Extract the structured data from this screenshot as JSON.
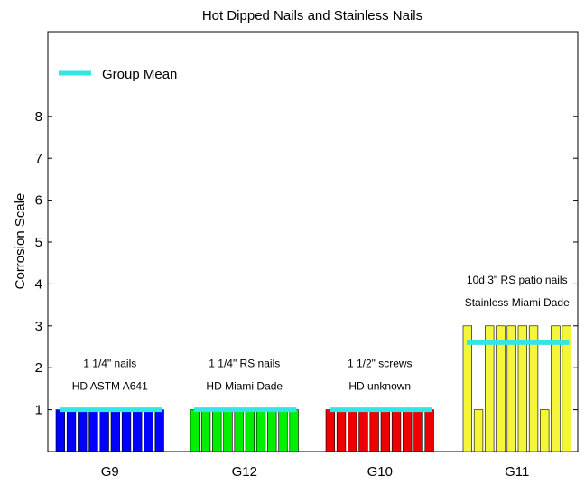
{
  "chart_data": {
    "type": "bar",
    "title": "Hot Dipped Nails and Stainless Nails",
    "xlabel": "",
    "ylabel": "Corrosion Scale",
    "ylim": [
      0,
      10
    ],
    "yticks": [
      "1",
      "2",
      "3",
      "4",
      "5",
      "6",
      "7",
      "8"
    ],
    "legend": {
      "label": "Group Mean",
      "position": "top-left",
      "color": "#33e6e6"
    },
    "groups": [
      {
        "name": "G9",
        "color": "#0000ff",
        "values": [
          1,
          1,
          1,
          1,
          1,
          1,
          1,
          1,
          1,
          1
        ],
        "mean": 1.0,
        "note_lines": [
          "1 1/4\" nails",
          "HD ASTM A641"
        ]
      },
      {
        "name": "G12",
        "color": "#00ee00",
        "values": [
          1,
          1,
          1,
          1,
          1,
          1,
          1,
          1,
          1,
          1
        ],
        "mean": 1.0,
        "note_lines": [
          "1 1/4\" RS nails",
          "HD Miami Dade"
        ]
      },
      {
        "name": "G10",
        "color": "#ee0000",
        "values": [
          1,
          1,
          1,
          1,
          1,
          1,
          1,
          1,
          1,
          1
        ],
        "mean": 1.0,
        "note_lines": [
          "1 1/2\" screws",
          "HD unknown"
        ]
      },
      {
        "name": "G11",
        "color": "#f5f53a",
        "values": [
          3,
          1,
          3,
          3,
          3,
          3,
          3,
          1,
          3,
          3
        ],
        "mean": 2.6,
        "note_lines": [
          "10d 3\" RS patio nails",
          "Stainless Miami Dade"
        ]
      }
    ]
  }
}
